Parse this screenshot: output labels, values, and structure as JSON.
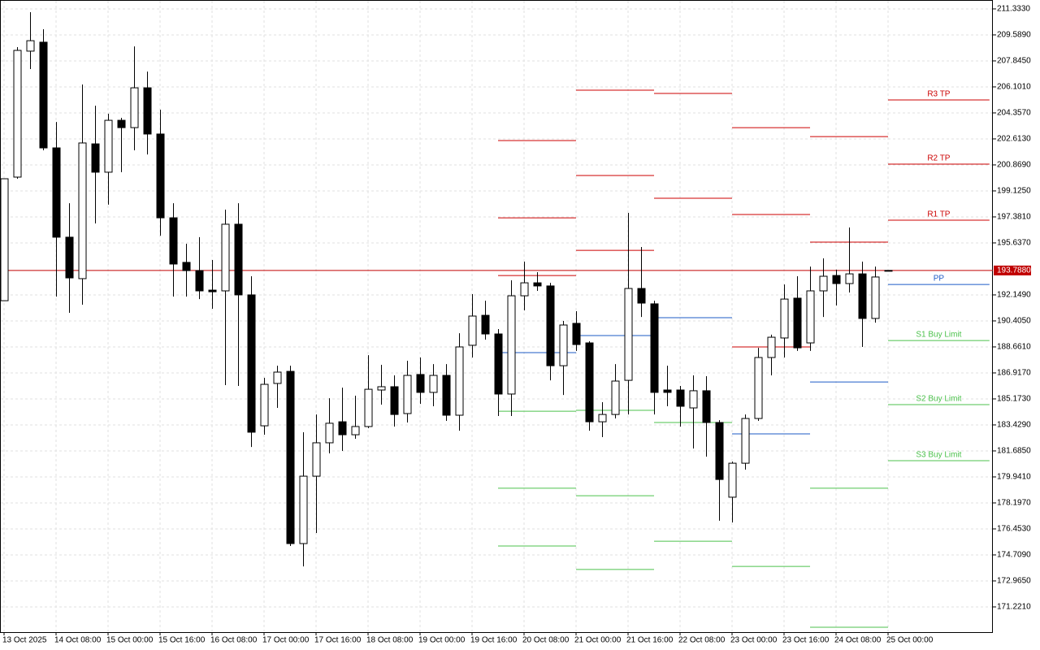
{
  "chart_data": {
    "type": "candlestick",
    "up_color": "#ffffff",
    "down_color": "#000000",
    "grid": true,
    "xlim": [
      -0.3125,
      76.0625
    ],
    "ylim": [
      169.53,
      211.93
    ],
    "yticks": [
      {
        "value": 211.333,
        "label": "211.3330"
      },
      {
        "value": 209.589,
        "label": "209.5890"
      },
      {
        "value": 207.845,
        "label": "207.8450"
      },
      {
        "value": 206.101,
        "label": "206.1010"
      },
      {
        "value": 204.357,
        "label": "204.3570"
      },
      {
        "value": 202.613,
        "label": "202.6130"
      },
      {
        "value": 200.869,
        "label": "200.8690"
      },
      {
        "value": 199.125,
        "label": "199.1250"
      },
      {
        "value": 197.381,
        "label": "197.3810"
      },
      {
        "value": 195.637,
        "label": "195.6370"
      },
      {
        "value": 192.149,
        "label": "192.1490"
      },
      {
        "value": 190.405,
        "label": "190.4050"
      },
      {
        "value": 188.661,
        "label": "188.6610"
      },
      {
        "value": 186.917,
        "label": "186.9170"
      },
      {
        "value": 185.173,
        "label": "185.1730"
      },
      {
        "value": 183.429,
        "label": "183.4290"
      },
      {
        "value": 181.685,
        "label": "181.6850"
      },
      {
        "value": 179.941,
        "label": "179.9410"
      },
      {
        "value": 178.197,
        "label": "178.1970"
      },
      {
        "value": 176.453,
        "label": "176.4530"
      },
      {
        "value": 174.709,
        "label": "174.7090"
      },
      {
        "value": 172.965,
        "label": "172.9650"
      },
      {
        "value": 171.221,
        "label": "171.2210"
      }
    ],
    "xticks": [
      {
        "value": 0,
        "label": "13 Oct 2025"
      },
      {
        "value": 4,
        "label": "14 Oct 08:00"
      },
      {
        "value": 8,
        "label": "15 Oct 00:00"
      },
      {
        "value": 12,
        "label": "15 Oct 16:00"
      },
      {
        "value": 16,
        "label": "16 Oct 08:00"
      },
      {
        "value": 20,
        "label": "17 Oct 00:00"
      },
      {
        "value": 24,
        "label": "17 Oct 16:00"
      },
      {
        "value": 28,
        "label": "18 Oct 08:00"
      },
      {
        "value": 32,
        "label": "19 Oct 00:00"
      },
      {
        "value": 36,
        "label": "19 Oct 16:00"
      },
      {
        "value": 40,
        "label": "20 Oct 08:00"
      },
      {
        "value": 44,
        "label": "21 Oct 00:00"
      },
      {
        "value": 48,
        "label": "21 Oct 16:00"
      },
      {
        "value": 52,
        "label": "22 Oct 08:00"
      },
      {
        "value": 56,
        "label": "23 Oct 00:00"
      },
      {
        "value": 60,
        "label": "23 Oct 16:00"
      },
      {
        "value": 64,
        "label": "24 Oct 08:00"
      },
      {
        "value": 68,
        "label": "25 Oct 00:00"
      }
    ],
    "open": [
      191.76,
      200.05,
      208.5,
      209.1,
      202.01,
      196.02,
      193.24,
      202.28,
      200.38,
      203.86,
      203.37,
      206.04,
      202.94,
      197.32,
      194.33,
      193.78,
      192.47,
      192.42,
      196.89,
      192.15,
      183.37,
      186.21,
      187.02,
      175.47,
      179.99,
      182.23,
      183.64,
      182.77,
      183.32,
      185.77,
      185.99,
      184.19,
      186.81,
      185.61,
      186.75,
      184.08,
      188.77,
      190.78,
      189.53,
      185.5,
      192.09,
      192.96,
      192.75,
      187.4,
      190.24,
      188.93,
      183.64,
      184.13,
      186.42,
      192.58,
      191.55,
      185.77,
      185.77,
      184.57,
      185.72,
      183.59,
      178.58,
      180.86,
      183.86,
      187.95,
      189.26,
      191.93,
      188.93,
      192.42,
      193.45,
      192.91,
      193.56,
      190.57,
      193.79
    ],
    "high": [
      199.94,
      208.77,
      211.11,
      209.97,
      203.75,
      198.3,
      206.26,
      204.84,
      204.3,
      204.03,
      208.82,
      207.13,
      204.57,
      198.3,
      195.58,
      196.02,
      194.49,
      197.87,
      198.3,
      193.4,
      186.59,
      187.4,
      187.4,
      182.94,
      184.13,
      185.22,
      185.93,
      185.39,
      188.11,
      187.46,
      186.75,
      187.73,
      187.95,
      187.51,
      187.51,
      189.58,
      192.2,
      191.76,
      189.86,
      193.13,
      194.38,
      193.67,
      192.96,
      190.4,
      191.06,
      189.04,
      184.95,
      187.51,
      197.65,
      195.36,
      191.76,
      187.4,
      186.04,
      186.75,
      186.7,
      183.75,
      180.97,
      184.13,
      188.6,
      189.48,
      192.85,
      193.4,
      194.05,
      194.6,
      193.84,
      196.67,
      194.38,
      194.05,
      193.79
    ],
    "low": [
      191.76,
      199.94,
      207.3,
      201.85,
      192.04,
      190.95,
      191.49,
      196.94,
      198.2,
      200.38,
      201.85,
      201.57,
      196.12,
      192.04,
      192.04,
      191.87,
      191.22,
      186.1,
      186.04,
      181.95,
      182.77,
      184.57,
      175.31,
      173.94,
      176.18,
      181.52,
      181.68,
      182.5,
      183.21,
      184.79,
      183.32,
      183.59,
      184.84,
      184.68,
      183.7,
      183.04,
      187.95,
      189.15,
      184.03,
      184.03,
      191.11,
      192.42,
      186.42,
      185.44,
      188.39,
      183.04,
      182.61,
      183.86,
      184.13,
      190.67,
      184.13,
      184.68,
      183.32,
      181.85,
      181.3,
      177.0,
      176.89,
      180.43,
      183.7,
      186.75,
      187.95,
      188.39,
      188.39,
      190.67,
      191.44,
      192.31,
      188.66,
      190.29,
      193.79
    ],
    "close": [
      199.94,
      208.55,
      209.2,
      202.01,
      196.02,
      193.29,
      202.34,
      200.38,
      203.86,
      203.37,
      206.04,
      202.94,
      197.32,
      194.22,
      193.78,
      192.42,
      192.36,
      196.89,
      192.15,
      182.94,
      186.15,
      186.97,
      175.47,
      179.99,
      182.23,
      183.54,
      182.77,
      183.32,
      185.82,
      185.99,
      184.13,
      186.75,
      185.61,
      186.75,
      184.08,
      188.66,
      190.73,
      189.53,
      185.5,
      192.09,
      192.96,
      192.75,
      187.4,
      190.13,
      188.82,
      183.64,
      184.13,
      186.37,
      192.58,
      191.6,
      185.61,
      185.61,
      184.68,
      185.72,
      183.59,
      179.77,
      180.86,
      183.86,
      187.95,
      189.31,
      191.87,
      188.6,
      192.42,
      193.4,
      192.91,
      193.56,
      190.57,
      193.35,
      193.79
    ],
    "current_price": {
      "value": 193.788,
      "label": "193.7880",
      "color": "#c00000"
    },
    "pivots": [
      {
        "start": 38,
        "end": 44,
        "levels": [
          {
            "value": 202.5,
            "color": "#cc0000"
          },
          {
            "value": 197.32,
            "color": "#cc0000"
          },
          {
            "value": 193.45,
            "color": "#cc0000"
          },
          {
            "value": 188.28,
            "color": "#1e5bc6"
          },
          {
            "value": 184.35,
            "color": "#4cc24c"
          },
          {
            "value": 179.18,
            "color": "#4cc24c"
          },
          {
            "value": 175.31,
            "color": "#4cc24c"
          }
        ]
      },
      {
        "start": 44,
        "end": 50,
        "levels": [
          {
            "value": 205.88,
            "color": "#cc0000"
          },
          {
            "value": 200.16,
            "color": "#cc0000"
          },
          {
            "value": 195.14,
            "color": "#cc0000"
          },
          {
            "value": 189.42,
            "color": "#1e5bc6"
          },
          {
            "value": 184.41,
            "color": "#4cc24c"
          },
          {
            "value": 178.68,
            "color": "#4cc24c"
          },
          {
            "value": 173.73,
            "color": "#4cc24c"
          }
        ]
      },
      {
        "start": 50,
        "end": 56,
        "levels": [
          {
            "value": 205.66,
            "color": "#cc0000"
          },
          {
            "value": 198.63,
            "color": "#cc0000"
          },
          {
            "value": 190.62,
            "color": "#1e5bc6"
          },
          {
            "value": 183.59,
            "color": "#4cc24c"
          },
          {
            "value": 175.63,
            "color": "#4cc24c"
          }
        ]
      },
      {
        "start": 56,
        "end": 62,
        "levels": [
          {
            "value": 203.37,
            "color": "#cc0000"
          },
          {
            "value": 197.54,
            "color": "#cc0000"
          },
          {
            "value": 188.66,
            "color": "#cc0000"
          },
          {
            "value": 182.83,
            "color": "#1e5bc6"
          },
          {
            "value": 173.94,
            "color": "#4cc24c"
          }
        ]
      },
      {
        "start": 62,
        "end": 68,
        "levels": [
          {
            "value": 202.77,
            "color": "#cc0000"
          },
          {
            "value": 195.69,
            "color": "#cc0000"
          },
          {
            "value": 186.31,
            "color": "#1e5bc6"
          },
          {
            "value": 179.18,
            "color": "#4cc24c"
          },
          {
            "value": 169.86,
            "color": "#4cc24c"
          }
        ]
      },
      {
        "start": 68,
        "end": 75.8,
        "levels": [
          {
            "value": 205.23,
            "color": "#cc0000",
            "label": "R3 TP"
          },
          {
            "value": 200.92,
            "color": "#cc0000",
            "label": "R2 TP"
          },
          {
            "value": 197.16,
            "color": "#cc0000",
            "label": "R1 TP"
          },
          {
            "value": 192.85,
            "color": "#1e5bc6",
            "label": "PP"
          },
          {
            "value": 189.09,
            "color": "#4cc24c",
            "label": "S1 Buy Limit"
          },
          {
            "value": 184.79,
            "color": "#4cc24c",
            "label": "S2 Buy Limit"
          },
          {
            "value": 181.03,
            "color": "#4cc24c",
            "label": "S3 Buy Limit"
          }
        ]
      }
    ]
  }
}
